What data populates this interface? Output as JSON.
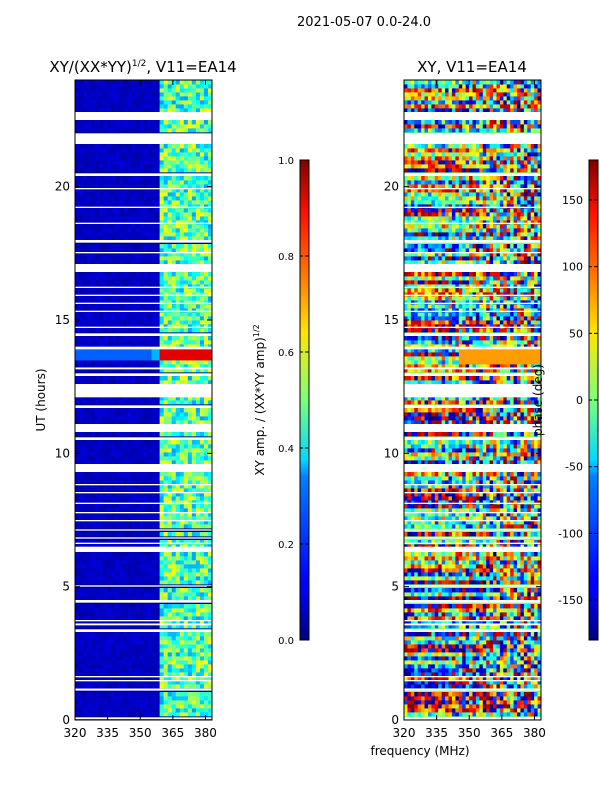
{
  "figure": {
    "suptitle": "2021-05-07 0.0-24.0",
    "shared_xlabel": "frequency (MHz)"
  },
  "colorbars": {
    "left": {
      "label": "XY amp. / (XX*YY amp)",
      "label_exponent": "1/2",
      "ticks": [
        "0.0",
        "0.2",
        "0.4",
        "0.6",
        "0.8",
        "1.0"
      ],
      "range": [
        0.0,
        1.0
      ]
    },
    "right": {
      "label": "phase (deg)",
      "ticks": [
        "-150",
        "-100",
        "-50",
        "0",
        "50",
        "100",
        "150"
      ],
      "range": [
        -180,
        180
      ]
    },
    "colormap": "jet"
  },
  "chart_data": [
    {
      "type": "heatmap",
      "title": "XY/(XX*YY)",
      "title_exponent": "1/2",
      "title_suffix": ", V11=EA14",
      "xlabel": "",
      "ylabel": "UT (hours)",
      "xlim": [
        320,
        383
      ],
      "ylim": [
        0,
        24
      ],
      "xticks": [
        "320",
        "335",
        "350",
        "365",
        "380"
      ],
      "yticks": [
        "0",
        "5",
        "10",
        "15",
        "20"
      ],
      "value_range": [
        0.0,
        1.0
      ],
      "description_of_bands": [
        {
          "freq_range": [
            320,
            359
          ],
          "value": 0.05
        },
        {
          "freq_range": [
            359,
            383
          ],
          "value": 0.45
        }
      ],
      "bright_feature": {
        "ut": 13.7,
        "freq_range": [
          359,
          383
        ],
        "value": 0.9
      }
    },
    {
      "type": "heatmap",
      "title": "XY, V11=EA14",
      "xlabel": "frequency (MHz)",
      "ylabel": "",
      "xlim": [
        320,
        383
      ],
      "ylim": [
        0,
        24
      ],
      "xticks": [
        "320",
        "335",
        "350",
        "365",
        "380"
      ],
      "yticks": [
        "0",
        "5",
        "10",
        "15",
        "20"
      ],
      "value_range": [
        -180,
        180
      ],
      "bright_feature": {
        "ut": 13.7,
        "freq_range": [
          345,
          383
        ],
        "value": 80
      }
    }
  ],
  "flagged_ut_gaps": [
    [
      0.03,
      0.1
    ],
    [
      1.1,
      1.18
    ],
    [
      1.45,
      1.5
    ],
    [
      1.6,
      1.65
    ],
    [
      3.3,
      3.4
    ],
    [
      3.55,
      3.62
    ],
    [
      3.7,
      3.75
    ],
    [
      4.4,
      4.5
    ],
    [
      5.0,
      5.05
    ],
    [
      6.3,
      6.5
    ],
    [
      6.6,
      6.65
    ],
    [
      6.8,
      6.85
    ],
    [
      7.1,
      7.15
    ],
    [
      7.45,
      7.5
    ],
    [
      7.75,
      7.8
    ],
    [
      8.1,
      8.15
    ],
    [
      8.5,
      8.55
    ],
    [
      8.8,
      8.85
    ],
    [
      9.3,
      9.6
    ],
    [
      10.5,
      10.6
    ],
    [
      10.8,
      11.1
    ],
    [
      11.7,
      11.8
    ],
    [
      12.1,
      12.6
    ],
    [
      12.9,
      13.0
    ],
    [
      13.15,
      13.22
    ],
    [
      13.9,
      14.0
    ],
    [
      14.4,
      14.5
    ],
    [
      14.7,
      14.75
    ],
    [
      15.3,
      15.35
    ],
    [
      15.6,
      15.65
    ],
    [
      15.9,
      15.95
    ],
    [
      16.2,
      16.25
    ],
    [
      16.8,
      17.1
    ],
    [
      17.5,
      17.55
    ],
    [
      17.9,
      18.0
    ],
    [
      18.6,
      18.65
    ],
    [
      19.2,
      19.25
    ],
    [
      19.9,
      19.95
    ],
    [
      20.4,
      20.5
    ],
    [
      21.6,
      22.0
    ],
    [
      22.5,
      22.8
    ]
  ]
}
